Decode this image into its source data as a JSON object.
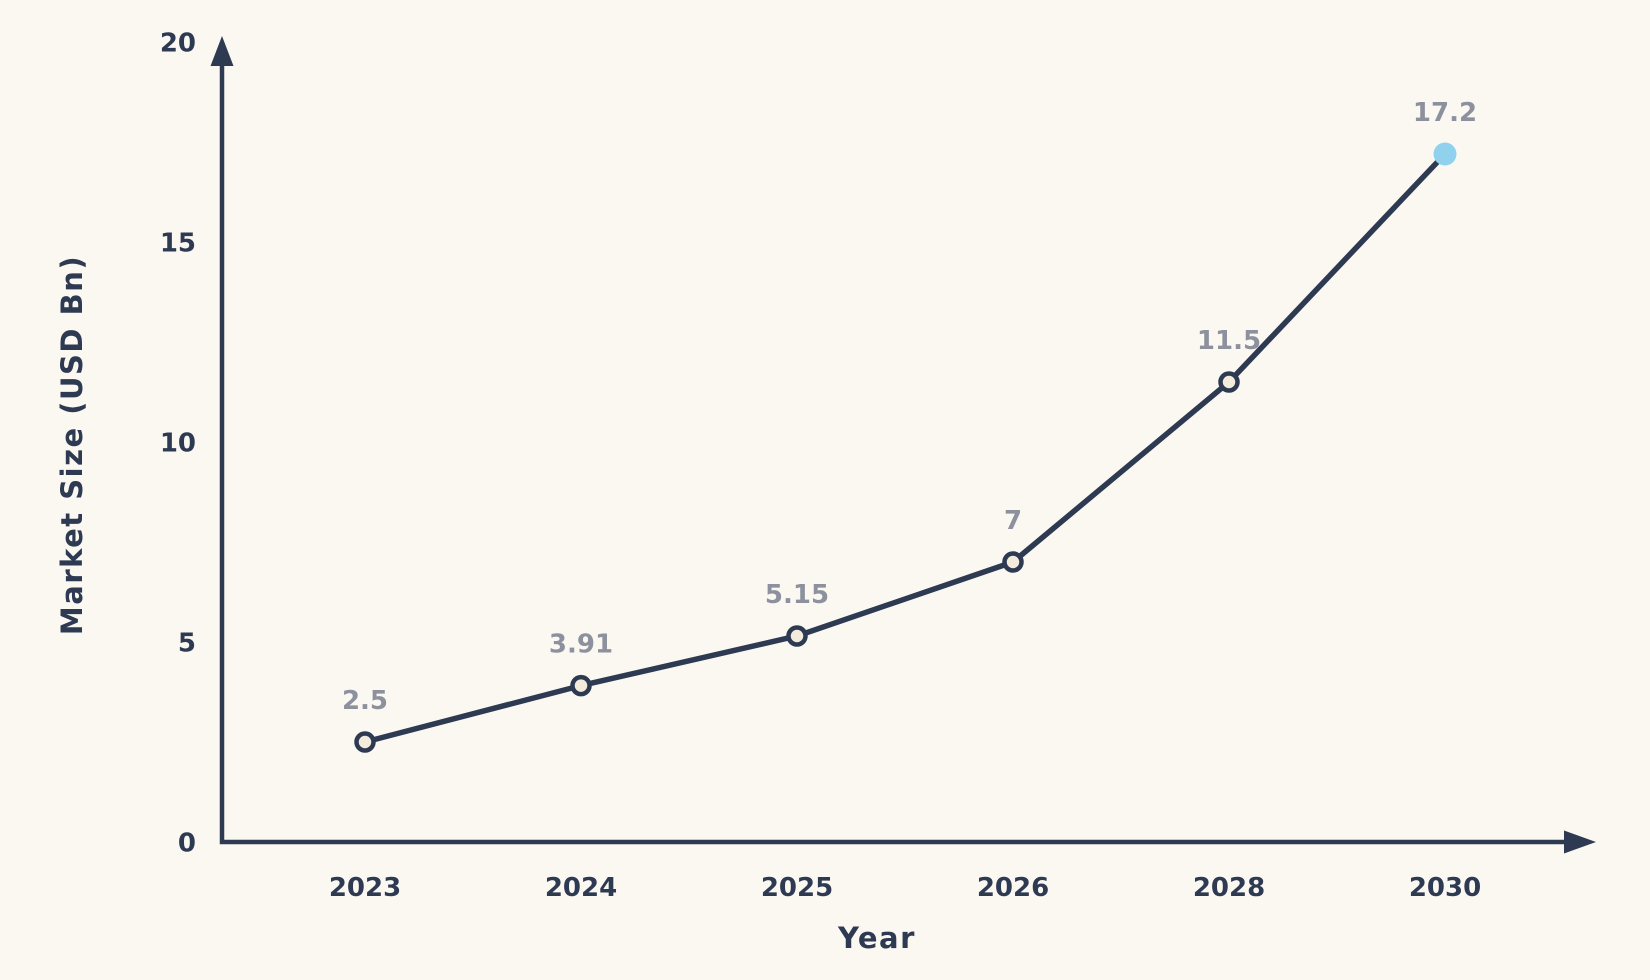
{
  "page": {
    "background_color": "#fbf8f2"
  },
  "chart_data": {
    "type": "line",
    "title": "",
    "xlabel": "Year",
    "ylabel": "Market Size (USD Bn)",
    "categories": [
      "2023",
      "2024",
      "2025",
      "2026",
      "2028",
      "2030"
    ],
    "series": [
      {
        "name": "Market Size",
        "values": [
          2.5,
          3.91,
          5.15,
          7,
          11.5,
          17.2
        ],
        "point_labels": [
          "2.5",
          "3.91",
          "5.15",
          "7",
          "11.5",
          "17.2"
        ]
      }
    ],
    "ylim": [
      0,
      20
    ],
    "y_ticks": [
      0,
      5,
      10,
      15,
      20
    ],
    "grid": false,
    "legend_position": "none",
    "axis_arrows": true,
    "colors": {
      "line": "#2d3a52",
      "axis": "#2d3a52",
      "tick_label": "#2d3a52",
      "value_label": "#8c919d",
      "marker_fill": "#f3ecdc",
      "marker_stroke": "#2d3a52",
      "final_marker_fill": "#90d2ee",
      "background": "#fbf8f2"
    },
    "marker_notes": "all points outlined cream circles except last point solid light blue"
  }
}
